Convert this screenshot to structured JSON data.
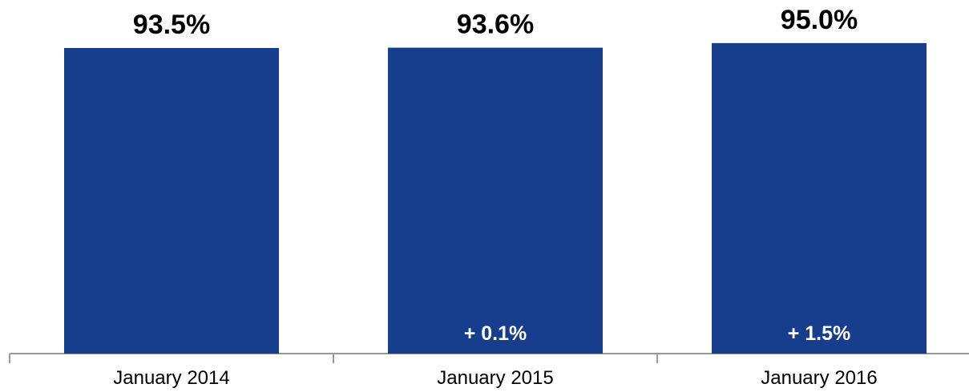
{
  "chart_data": {
    "type": "bar",
    "categories": [
      "January 2014",
      "January 2015",
      "January 2016"
    ],
    "values": [
      93.5,
      93.6,
      95.0
    ],
    "value_labels": [
      "93.5%",
      "93.6%",
      "95.0%"
    ],
    "change_labels": [
      "",
      "+ 0.1%",
      "+ 1.5%"
    ],
    "title": "",
    "xlabel": "",
    "ylabel": "",
    "bar_color": "#163e8c",
    "axis_color": "#999999",
    "grid": false,
    "legend": "none"
  }
}
